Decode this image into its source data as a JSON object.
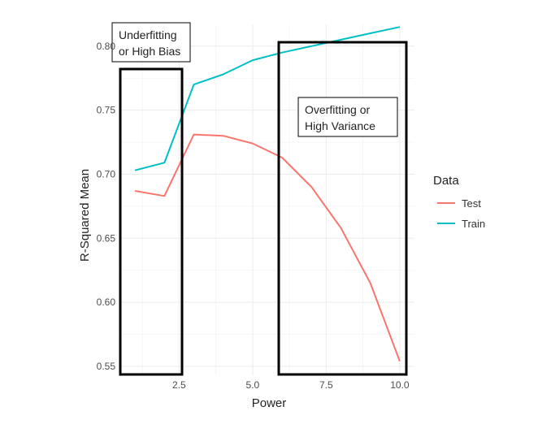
{
  "chart_data": {
    "type": "line",
    "title": "",
    "xlabel": "Power",
    "ylabel": "R-Squared Mean",
    "xlim": [
      0.5,
      10.5
    ],
    "ylim": [
      0.543,
      0.817
    ],
    "xticks": [
      2.5,
      5.0,
      7.5,
      10.0
    ],
    "xtick_labels": [
      "2.5",
      "5.0",
      "7.5",
      "10.0"
    ],
    "yticks": [
      0.55,
      0.6,
      0.65,
      0.7,
      0.75,
      0.8
    ],
    "ytick_labels": [
      "0.55",
      "0.60",
      "0.65",
      "0.70",
      "0.75",
      "0.80"
    ],
    "grid": true,
    "legend": {
      "title": "Data",
      "position": "right"
    },
    "x": [
      1,
      2,
      3,
      4,
      5,
      6,
      7,
      8,
      9,
      10
    ],
    "series": [
      {
        "name": "Test",
        "color": "#F8766D",
        "values": [
          0.687,
          0.683,
          0.731,
          0.73,
          0.724,
          0.713,
          0.69,
          0.658,
          0.615,
          0.554
        ]
      },
      {
        "name": "Train",
        "color": "#00BFC4",
        "values": [
          0.703,
          0.709,
          0.77,
          0.778,
          0.789,
          0.795,
          0.8,
          0.805,
          0.81,
          0.815
        ]
      }
    ],
    "annotations": [
      {
        "lines": [
          "Underfitting",
          "or High Bias"
        ],
        "region_x": [
          0.6,
          2.5
        ]
      },
      {
        "lines": [
          "Overfitting or",
          "High Variance"
        ],
        "region_x": [
          5.9,
          10.3
        ]
      }
    ]
  }
}
